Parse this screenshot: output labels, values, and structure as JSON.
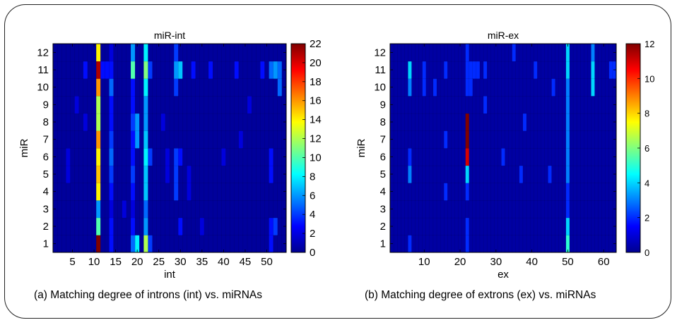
{
  "chart_data": [
    {
      "type": "heatmap",
      "title": "miR-int",
      "xlabel": "int",
      "ylabel": "miR",
      "caption": "(a) Matching degree of introns (int) vs. miRNAs",
      "x_ticks": [
        5,
        10,
        15,
        20,
        25,
        30,
        35,
        40,
        45,
        50
      ],
      "y_ticks": [
        1,
        2,
        3,
        4,
        5,
        6,
        7,
        8,
        9,
        10,
        11,
        12
      ],
      "colorbar_ticks": [
        0,
        2,
        4,
        6,
        8,
        10,
        12,
        14,
        16,
        18,
        20,
        22
      ],
      "colorbar_range": [
        0,
        22
      ],
      "x_range": [
        1,
        54
      ],
      "y_range": [
        1,
        12
      ],
      "colormap": "jet",
      "grid": false,
      "background_value": 0.6,
      "cells": [
        [
          11,
          1,
          22
        ],
        [
          11,
          2,
          10
        ],
        [
          11,
          3,
          6
        ],
        [
          11,
          4,
          14
        ],
        [
          11,
          5,
          15
        ],
        [
          11,
          6,
          14
        ],
        [
          11,
          7,
          16
        ],
        [
          11,
          8,
          12
        ],
        [
          11,
          9,
          12
        ],
        [
          11,
          10,
          16
        ],
        [
          11,
          11,
          21
        ],
        [
          11,
          12,
          14
        ],
        [
          14,
          1,
          3
        ],
        [
          14,
          2,
          3
        ],
        [
          14,
          3,
          2
        ],
        [
          14,
          4,
          3
        ],
        [
          14,
          5,
          4
        ],
        [
          14,
          6,
          5
        ],
        [
          14,
          7,
          4
        ],
        [
          14,
          8,
          3
        ],
        [
          14,
          9,
          3
        ],
        [
          14,
          10,
          5
        ],
        [
          14,
          11,
          3
        ],
        [
          14,
          12,
          2
        ],
        [
          19,
          1,
          5
        ],
        [
          19,
          2,
          3
        ],
        [
          19,
          3,
          2
        ],
        [
          19,
          4,
          3
        ],
        [
          19,
          5,
          4
        ],
        [
          19,
          6,
          3
        ],
        [
          19,
          7,
          3
        ],
        [
          19,
          8,
          4
        ],
        [
          19,
          9,
          3
        ],
        [
          19,
          10,
          3
        ],
        [
          19,
          11,
          10
        ],
        [
          19,
          12,
          6
        ],
        [
          20,
          1,
          8
        ],
        [
          20,
          7,
          6
        ],
        [
          20,
          8,
          6
        ],
        [
          22,
          1,
          12
        ],
        [
          22,
          2,
          6
        ],
        [
          22,
          3,
          5
        ],
        [
          22,
          4,
          7
        ],
        [
          22,
          5,
          7
        ],
        [
          22,
          6,
          8
        ],
        [
          22,
          7,
          7
        ],
        [
          22,
          8,
          6
        ],
        [
          22,
          9,
          6
        ],
        [
          22,
          10,
          8
        ],
        [
          22,
          11,
          11
        ],
        [
          22,
          12,
          8
        ],
        [
          23,
          1,
          4
        ],
        [
          23,
          6,
          4
        ],
        [
          23,
          11,
          4
        ],
        [
          29,
          4,
          4
        ],
        [
          29,
          5,
          4
        ],
        [
          29,
          6,
          4
        ],
        [
          29,
          10,
          4
        ],
        [
          29,
          11,
          6
        ],
        [
          29,
          12,
          4
        ],
        [
          30,
          2,
          3
        ],
        [
          30,
          6,
          3
        ],
        [
          30,
          11,
          7
        ],
        [
          8,
          11,
          3
        ],
        [
          12,
          11,
          3
        ],
        [
          13,
          11,
          3
        ],
        [
          33,
          11,
          3
        ],
        [
          37,
          11,
          3
        ],
        [
          43,
          11,
          3
        ],
        [
          49,
          11,
          3
        ],
        [
          51,
          1,
          3
        ],
        [
          51,
          2,
          3
        ],
        [
          51,
          5,
          3
        ],
        [
          51,
          6,
          3
        ],
        [
          51,
          11,
          5
        ],
        [
          52,
          2,
          4
        ],
        [
          52,
          11,
          6
        ],
        [
          53,
          10,
          5
        ],
        [
          53,
          11,
          5
        ],
        [
          4,
          6,
          2
        ],
        [
          4,
          5,
          2
        ],
        [
          27,
          5,
          2
        ],
        [
          27,
          6,
          2
        ],
        [
          32,
          5,
          2
        ],
        [
          32,
          4,
          2
        ],
        [
          40,
          6,
          2
        ],
        [
          44,
          7,
          2
        ],
        [
          46,
          9,
          2
        ],
        [
          6,
          9,
          2
        ],
        [
          8,
          8,
          2
        ],
        [
          17,
          3,
          2
        ],
        [
          26,
          8,
          2
        ],
        [
          35,
          2,
          2
        ]
      ]
    },
    {
      "type": "heatmap",
      "title": "miR-ex",
      "xlabel": "ex",
      "ylabel": "miR",
      "caption": "(b) Matching degree of extrons (ex) vs. miRNAs",
      "x_ticks": [
        10,
        20,
        30,
        40,
        50,
        60
      ],
      "y_ticks": [
        1,
        2,
        3,
        4,
        5,
        6,
        7,
        8,
        9,
        10,
        11,
        12
      ],
      "colorbar_ticks": [
        0,
        2,
        4,
        6,
        8,
        10,
        12
      ],
      "colorbar_range": [
        0,
        12
      ],
      "x_range": [
        1,
        63
      ],
      "y_range": [
        1,
        12
      ],
      "colormap": "jet",
      "grid": false,
      "background_value": 0.4,
      "cells": [
        [
          22,
          7,
          12
        ],
        [
          22,
          8,
          12
        ],
        [
          22,
          6,
          11
        ],
        [
          22,
          5,
          4
        ],
        [
          22,
          4,
          2
        ],
        [
          22,
          2,
          2
        ],
        [
          22,
          1,
          2
        ],
        [
          22,
          10,
          2
        ],
        [
          22,
          11,
          2
        ],
        [
          22,
          12,
          2
        ],
        [
          6,
          1,
          2
        ],
        [
          6,
          5,
          3
        ],
        [
          6,
          6,
          2
        ],
        [
          6,
          10,
          3
        ],
        [
          6,
          11,
          4
        ],
        [
          10,
          10,
          2
        ],
        [
          10,
          11,
          2
        ],
        [
          13,
          10,
          2
        ],
        [
          16,
          4,
          2
        ],
        [
          16,
          7,
          2
        ],
        [
          16,
          11,
          2
        ],
        [
          23,
          10,
          2
        ],
        [
          23,
          11,
          2
        ],
        [
          24,
          11,
          2
        ],
        [
          25,
          11,
          2
        ],
        [
          27,
          9,
          2
        ],
        [
          27,
          11,
          2
        ],
        [
          32,
          6,
          2
        ],
        [
          35,
          12,
          2
        ],
        [
          37,
          5,
          2
        ],
        [
          38,
          8,
          2
        ],
        [
          41,
          11,
          2
        ],
        [
          45,
          5,
          2
        ],
        [
          46,
          10,
          2
        ],
        [
          50,
          1,
          5
        ],
        [
          50,
          2,
          4
        ],
        [
          50,
          3,
          2
        ],
        [
          50,
          4,
          2
        ],
        [
          50,
          5,
          3
        ],
        [
          50,
          6,
          3
        ],
        [
          50,
          7,
          3
        ],
        [
          50,
          8,
          3
        ],
        [
          50,
          9,
          3
        ],
        [
          50,
          10,
          3
        ],
        [
          50,
          11,
          4
        ],
        [
          50,
          12,
          4
        ],
        [
          57,
          10,
          4
        ],
        [
          57,
          11,
          4
        ],
        [
          57,
          12,
          3
        ],
        [
          62,
          11,
          2
        ],
        [
          63,
          11,
          2
        ]
      ]
    }
  ]
}
